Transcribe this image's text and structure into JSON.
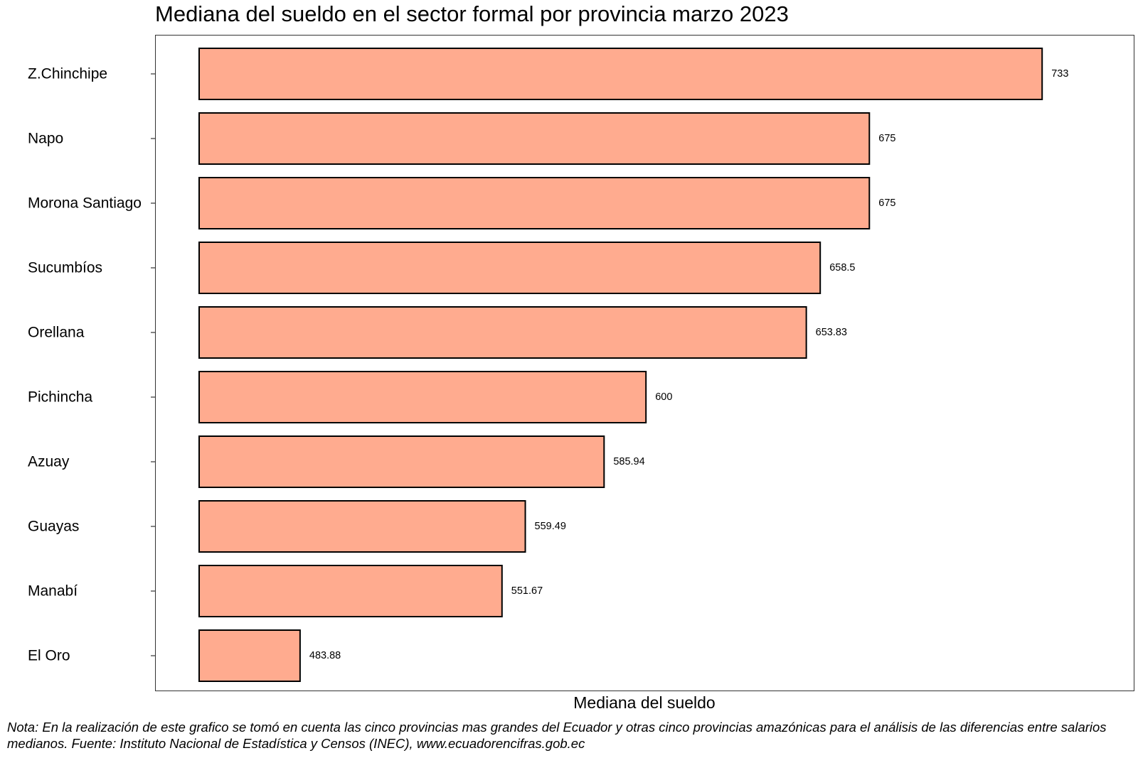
{
  "chart_data": {
    "type": "bar",
    "orientation": "horizontal",
    "title": "Mediana del sueldo en el sector formal por provincia marzo 2023",
    "xlabel": "Mediana del sueldo",
    "ylabel": "",
    "categories": [
      "Z.Chinchipe",
      "Napo",
      "Morona Santiago",
      "Sucumbíos",
      "Orellana",
      "Pichincha",
      "Azuay",
      "Guayas",
      "Manabí",
      "El Oro"
    ],
    "values": [
      733,
      675,
      675,
      658.5,
      653.83,
      600,
      585.94,
      559.49,
      551.67,
      483.88
    ],
    "value_labels": [
      "733",
      "675",
      "675",
      "658.5",
      "653.83",
      "600",
      "585.94",
      "559.49",
      "551.67",
      "483.88"
    ],
    "xlim": [
      450,
      745
    ],
    "grid": false,
    "legend": "none",
    "bar_color": "#FFAB8F",
    "bar_edge_color": "#000000"
  },
  "note": "Nota: En la realización de este grafico se tomó en cuenta las cinco provincias mas grandes del Ecuador y otras cinco provincias amazónicas para el análisis de las diferencias entre salarios medianos. Fuente: Instituto Nacional de Estadística y Censos (INEC), www.ecuadorencifras.gob.ec"
}
